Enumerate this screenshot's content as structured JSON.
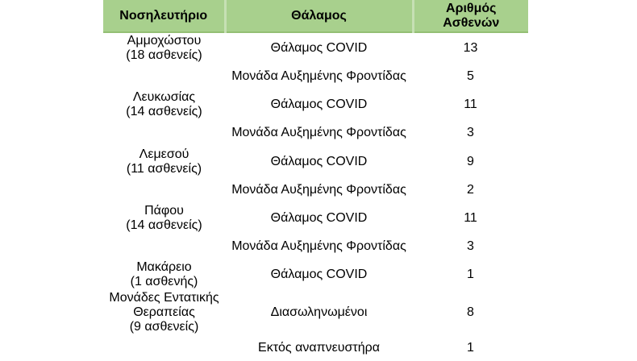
{
  "colors": {
    "header_bg": "#a8d08d",
    "divider": "#c6e0b4",
    "header_border": "#94bf74",
    "text": "#000000"
  },
  "header": {
    "hospital": "Νοσηλευτήριο",
    "ward": "Θάλαμος",
    "count": "Αριθμός\nΑσθενών"
  },
  "display": {
    "rows": [
      {
        "hospital": "Αμμοχώστου\n(18 ασθενείς)",
        "ward": "Θάλαμος COVID",
        "count": "13"
      },
      {
        "hospital": "",
        "ward": "Μονάδα Αυξημένης Φροντίδας",
        "count": "5"
      },
      {
        "hospital": "Λευκωσίας\n(14 ασθενείς)",
        "ward": "Θάλαμος COVID",
        "count": "11"
      },
      {
        "hospital": "",
        "ward": "Μονάδα Αυξημένης Φροντίδας",
        "count": "3"
      },
      {
        "hospital": "Λεμεσού\n(11 ασθενείς)",
        "ward": "Θάλαμος COVID",
        "count": "9"
      },
      {
        "hospital": "",
        "ward": "Μονάδα Αυξημένης Φροντίδας",
        "count": "2"
      },
      {
        "hospital": "Πάφου\n(14 ασθενείς)",
        "ward": "Θάλαμος COVID",
        "count": "11"
      },
      {
        "hospital": "",
        "ward": "Μονάδα Αυξημένης Φροντίδας",
        "count": "3"
      },
      {
        "hospital": "Μακάρειο\n(1 ασθενής)",
        "ward": "Θάλαμος COVID",
        "count": "1"
      },
      {
        "hospital": "Μονάδες Εντατικής\nΘεραπείας\n(9 ασθενείς)",
        "ward": "Διασωληνωμένοι",
        "count": "8"
      },
      {
        "hospital": "",
        "ward": "Εκτός αναπνευστήρα",
        "count": "1"
      }
    ]
  },
  "chart_data": {
    "type": "table",
    "title": "",
    "columns": [
      "Νοσηλευτήριο",
      "Θάλαμος",
      "Αριθμός Ασθενών"
    ],
    "rows": [
      [
        "Αμμοχώστου (18 ασθενείς)",
        "Θάλαμος COVID",
        13
      ],
      [
        "Αμμοχώστου (18 ασθενείς)",
        "Μονάδα Αυξημένης Φροντίδας",
        5
      ],
      [
        "Λευκωσίας (14 ασθενείς)",
        "Θάλαμος COVID",
        11
      ],
      [
        "Λευκωσίας (14 ασθενείς)",
        "Μονάδα Αυξημένης Φροντίδας",
        3
      ],
      [
        "Λεμεσού (11 ασθενείς)",
        "Θάλαμος COVID",
        9
      ],
      [
        "Λεμεσού (11 ασθενείς)",
        "Μονάδα Αυξημένης Φροντίδας",
        2
      ],
      [
        "Πάφου (14 ασθενείς)",
        "Θάλαμος COVID",
        11
      ],
      [
        "Πάφου (14 ασθενείς)",
        "Μονάδα Αυξημένης Φροντίδας",
        3
      ],
      [
        "Μακάρειο (1 ασθενής)",
        "Θάλαμος COVID",
        1
      ],
      [
        "Μονάδες Εντατικής Θεραπείας (9 ασθενείς)",
        "Διασωληνωμένοι",
        8
      ],
      [
        "Μονάδες Εντατικής Θεραπείας (9 ασθενείς)",
        "Εκτός αναπνευστήρα",
        1
      ]
    ]
  }
}
